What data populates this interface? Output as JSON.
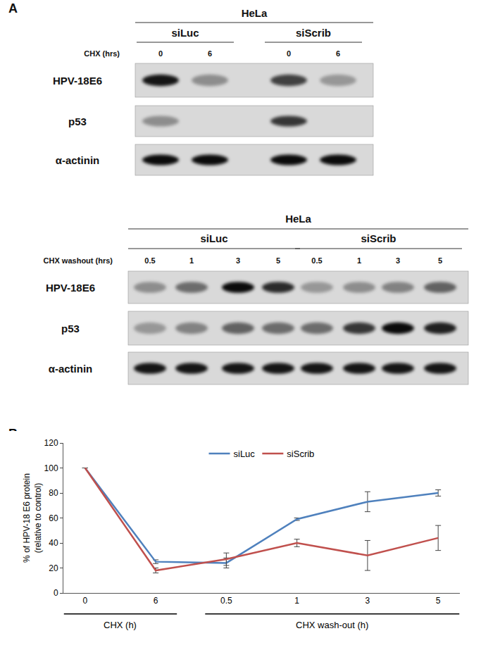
{
  "panel_labels": [
    "A",
    "B"
  ],
  "blots": [
    {
      "cell_line": "HeLa",
      "groups": [
        "siLuc",
        "siScrib"
      ],
      "lane_title": "CHX (hrs)",
      "lanes": [
        "0",
        "6",
        "0",
        "6"
      ],
      "rows": [
        {
          "label": "HPV-18E6",
          "intensity": [
            0.9,
            0.35,
            0.7,
            0.3
          ]
        },
        {
          "label": "p53",
          "intensity": [
            0.35,
            0,
            0.75,
            0
          ]
        },
        {
          "label": "α-actinin",
          "intensity": [
            0.95,
            0.95,
            0.95,
            0.95
          ]
        }
      ]
    },
    {
      "cell_line": "HeLa",
      "groups": [
        "siLuc",
        "siScrib"
      ],
      "lane_title": "CHX washout (hrs)",
      "lanes": [
        "0.5",
        "1",
        "3",
        "5",
        "0.5",
        "1",
        "3",
        "5"
      ],
      "rows": [
        {
          "label": "HPV-18E6",
          "intensity": [
            0.35,
            0.5,
            0.95,
            0.8,
            0.3,
            0.35,
            0.4,
            0.55
          ]
        },
        {
          "label": "p53",
          "intensity": [
            0.3,
            0.4,
            0.55,
            0.5,
            0.5,
            0.75,
            0.95,
            0.85
          ]
        },
        {
          "label": "α-actinin",
          "intensity": [
            0.9,
            0.9,
            0.9,
            0.9,
            0.9,
            0.9,
            0.9,
            0.9
          ]
        }
      ]
    }
  ],
  "chart_data": {
    "type": "line",
    "categories": [
      "0",
      "6",
      "0.5",
      "1",
      "3",
      "5"
    ],
    "groups": [
      {
        "label": "CHX (h)",
        "count": 2
      },
      {
        "label": "CHX wash-out (h)",
        "count": 4
      }
    ],
    "y_label": [
      "% of HPV-18 E6 protein",
      "(relative to control)"
    ],
    "series": [
      {
        "name": "siLuc",
        "color": "#4f81bd",
        "values": [
          100,
          25,
          24,
          59,
          73,
          80
        ],
        "errors": [
          0,
          1.5,
          4,
          1,
          8,
          2.5
        ]
      },
      {
        "name": "siScrib",
        "color": "#c0504d",
        "values": [
          100,
          18,
          27,
          40,
          30,
          44
        ],
        "errors": [
          0,
          2,
          5,
          3,
          12,
          10
        ]
      }
    ],
    "ylim": [
      0,
      120
    ],
    "yticks": [
      0,
      20,
      40,
      60,
      80,
      100,
      120
    ],
    "grid": false,
    "legend": "top"
  }
}
